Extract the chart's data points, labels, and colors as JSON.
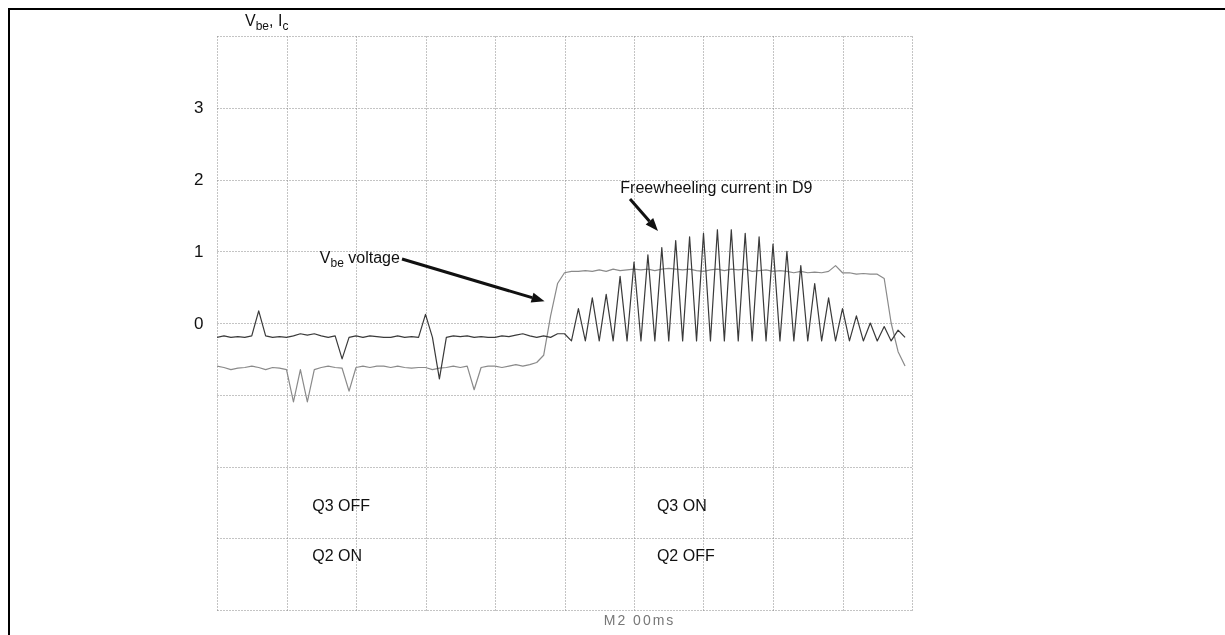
{
  "chart_data": {
    "type": "line",
    "ylabel": "V$_{be}$, I$_{c}$",
    "annotations": [
      {
        "text": "Freewheeling current in D9",
        "y": 1.28
      },
      "V$_{be}$ voltage",
      "Q3 OFF",
      "Q3 ON",
      "Q2 ON",
      "Q2 OFF",
      "M2 00ms"
    ],
    "categories": [
      null,
      null,
      null,
      null,
      null,
      null,
      null,
      null,
      null,
      null,
      null,
      null,
      null,
      null,
      null,
      null,
      null,
      null,
      null,
      null,
      null,
      null,
      null,
      null,
      null,
      null,
      null,
      null,
      null,
      null,
      null,
      null,
      null,
      null,
      null,
      null,
      null,
      null,
      null,
      null,
      null,
      null,
      null,
      null,
      null,
      null,
      null,
      null,
      null,
      null,
      null,
      null,
      null,
      null,
      null,
      null,
      null,
      null,
      null,
      null,
      null,
      null,
      null,
      null,
      null,
      null,
      null,
      null,
      null,
      null,
      null,
      null,
      null,
      null,
      null,
      null,
      null,
      null,
      null,
      null,
      null,
      null,
      null,
      null,
      null,
      null,
      null,
      null,
      null,
      null,
      null,
      null,
      null,
      null,
      null,
      null,
      null,
      null,
      null,
      null,
      null
    ],
    "series": [
      {
        "color": "#8a8a8a",
        "values": [
          -0.6,
          -0.62,
          -0.65,
          -0.63,
          -0.62,
          -0.6,
          -0.62,
          -0.65,
          -0.62,
          -0.63,
          -0.65,
          -1.1,
          -0.65,
          -1.1,
          -0.65,
          -0.62,
          -0.6,
          -0.62,
          -0.63,
          -0.95,
          -0.62,
          -0.6,
          -0.62,
          -0.6,
          -0.6,
          -0.62,
          -0.6,
          -0.62,
          -0.63,
          -0.62,
          -0.62,
          -0.65,
          -0.63,
          -0.62,
          -0.6,
          -0.62,
          -0.6,
          -0.93,
          -0.62,
          -0.6,
          -0.6,
          -0.62,
          -0.6,
          -0.58,
          -0.6,
          -0.58,
          -0.55,
          -0.45,
          0.1,
          0.55,
          0.7,
          0.72,
          0.72,
          0.73,
          0.72,
          0.74,
          0.72,
          0.75,
          0.73,
          0.74,
          0.75,
          0.74,
          0.75,
          0.73,
          0.75,
          0.76,
          0.75,
          0.74,
          0.75,
          0.73,
          0.72,
          0.74,
          0.75,
          0.73,
          0.75,
          0.74,
          0.75,
          0.72,
          0.73,
          0.74,
          0.72,
          0.73,
          0.72,
          0.7,
          0.72,
          0.7,
          0.71,
          0.7,
          0.72,
          0.8,
          0.7,
          0.7,
          0.68,
          0.69,
          0.68,
          0.68,
          0.62,
          0.0,
          -0.4,
          -0.6,
          null
        ]
      },
      {
        "color": "#3a3a3a",
        "values": [
          -0.2,
          -0.18,
          -0.2,
          -0.19,
          -0.2,
          -0.18,
          0.17,
          -0.18,
          -0.2,
          -0.19,
          -0.2,
          -0.18,
          -0.15,
          -0.17,
          -0.15,
          -0.18,
          -0.2,
          -0.18,
          -0.5,
          -0.2,
          -0.18,
          -0.2,
          -0.18,
          -0.19,
          -0.2,
          -0.2,
          -0.18,
          -0.2,
          -0.19,
          -0.2,
          0.12,
          -0.2,
          -0.78,
          -0.2,
          -0.18,
          -0.19,
          -0.18,
          -0.2,
          -0.19,
          -0.2,
          -0.2,
          -0.18,
          -0.19,
          -0.17,
          -0.15,
          -0.18,
          -0.2,
          -0.18,
          -0.2,
          -0.15,
          -0.15,
          -0.25,
          0.2,
          -0.25,
          0.35,
          -0.25,
          0.4,
          -0.25,
          0.65,
          -0.25,
          0.85,
          -0.25,
          0.95,
          -0.25,
          1.05,
          -0.25,
          1.15,
          -0.25,
          1.2,
          -0.25,
          1.25,
          -0.25,
          1.3,
          -0.25,
          1.3,
          -0.25,
          1.25,
          -0.25,
          1.2,
          -0.25,
          1.1,
          -0.25,
          1.0,
          -0.25,
          0.8,
          -0.25,
          0.55,
          -0.25,
          0.35,
          -0.25,
          0.2,
          -0.25,
          0.1,
          -0.25,
          0.0,
          -0.25,
          -0.05,
          -0.25,
          -0.1,
          -0.2,
          null
        ]
      }
    ],
    "ylim": [
      -4,
      4
    ],
    "yticks": [
      {
        "value": -4,
        "label": null
      },
      {
        "value": -3,
        "label": null
      },
      {
        "value": -2,
        "label": null
      },
      {
        "value": -1,
        "label": null
      },
      0,
      1,
      2,
      3,
      {
        "value": 4,
        "label": null
      }
    ],
    "tick_labels": "y",
    "grid": true
  }
}
